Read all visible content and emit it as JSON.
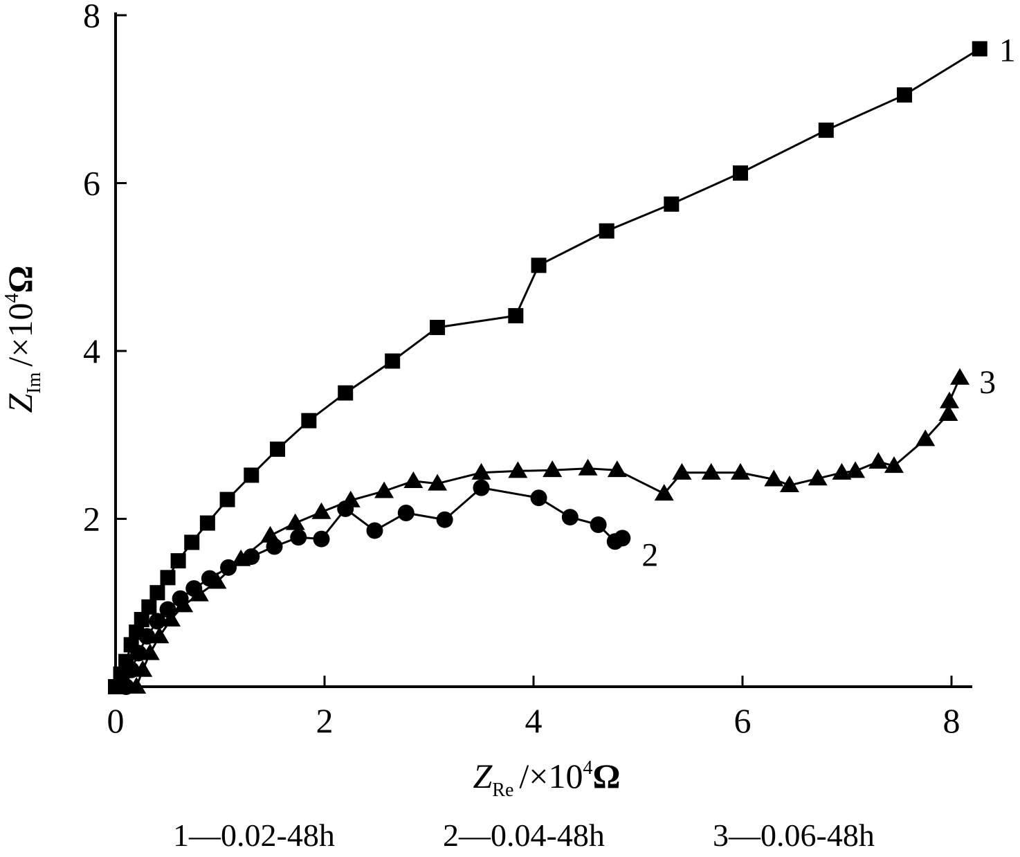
{
  "chart_data": {
    "type": "line",
    "title": "",
    "xlabel": {
      "main": "Z",
      "sub": "Re",
      "unit": "/×10",
      "exp": "4",
      "tail": "Ω"
    },
    "ylabel": {
      "main": "Z",
      "sub": "Im",
      "unit": "/×10",
      "exp": "4",
      "tail": "Ω"
    },
    "xlim": [
      0,
      8.2
    ],
    "ylim": [
      0,
      8
    ],
    "x_ticks": [
      0,
      2,
      4,
      6,
      8
    ],
    "y_ticks": [
      2,
      4,
      6,
      8
    ],
    "x_tick_labels": [
      "0",
      "2",
      "4",
      "6",
      "8"
    ],
    "y_tick_labels": [
      "2",
      "4",
      "6",
      "8"
    ],
    "grid": false,
    "legend_position": "bottom",
    "legend": [
      "1—0.02-48h",
      "2—0.04-48h",
      "3—0.06-48h"
    ],
    "series": [
      {
        "label": "1",
        "marker": "square",
        "color": "#000000",
        "points": [
          [
            0.0,
            0.0
          ],
          [
            0.05,
            0.15
          ],
          [
            0.1,
            0.3
          ],
          [
            0.15,
            0.5
          ],
          [
            0.2,
            0.65
          ],
          [
            0.25,
            0.8
          ],
          [
            0.32,
            0.95
          ],
          [
            0.4,
            1.12
          ],
          [
            0.5,
            1.3
          ],
          [
            0.6,
            1.5
          ],
          [
            0.73,
            1.72
          ],
          [
            0.88,
            1.95
          ],
          [
            1.07,
            2.23
          ],
          [
            1.3,
            2.52
          ],
          [
            1.55,
            2.83
          ],
          [
            1.85,
            3.17
          ],
          [
            2.2,
            3.5
          ],
          [
            2.65,
            3.88
          ],
          [
            3.08,
            4.28
          ],
          [
            3.83,
            4.42
          ],
          [
            4.05,
            5.02
          ],
          [
            4.7,
            5.43
          ],
          [
            5.32,
            5.75
          ],
          [
            5.98,
            6.12
          ],
          [
            6.8,
            6.63
          ],
          [
            7.55,
            7.05
          ],
          [
            8.27,
            7.6
          ]
        ]
      },
      {
        "label": "2",
        "marker": "circle",
        "color": "#000000",
        "points": [
          [
            0.1,
            0.0
          ],
          [
            0.15,
            0.2
          ],
          [
            0.22,
            0.4
          ],
          [
            0.3,
            0.6
          ],
          [
            0.4,
            0.78
          ],
          [
            0.5,
            0.92
          ],
          [
            0.62,
            1.05
          ],
          [
            0.75,
            1.17
          ],
          [
            0.9,
            1.29
          ],
          [
            1.08,
            1.42
          ],
          [
            1.3,
            1.55
          ],
          [
            1.52,
            1.67
          ],
          [
            1.75,
            1.78
          ],
          [
            1.97,
            1.76
          ],
          [
            2.2,
            2.12
          ],
          [
            2.48,
            1.86
          ],
          [
            2.78,
            2.07
          ],
          [
            3.15,
            1.99
          ],
          [
            3.5,
            2.37
          ],
          [
            4.05,
            2.25
          ],
          [
            4.35,
            2.02
          ],
          [
            4.62,
            1.93
          ],
          [
            4.78,
            1.73
          ],
          [
            4.85,
            1.77
          ]
        ]
      },
      {
        "label": "3",
        "marker": "triangle",
        "color": "#000000",
        "points": [
          [
            0.2,
            0.0
          ],
          [
            0.26,
            0.2
          ],
          [
            0.33,
            0.4
          ],
          [
            0.42,
            0.6
          ],
          [
            0.53,
            0.8
          ],
          [
            0.65,
            0.97
          ],
          [
            0.8,
            1.1
          ],
          [
            0.97,
            1.25
          ],
          [
            1.2,
            1.52
          ],
          [
            1.48,
            1.8
          ],
          [
            1.72,
            1.95
          ],
          [
            1.97,
            2.08
          ],
          [
            2.25,
            2.22
          ],
          [
            2.57,
            2.33
          ],
          [
            2.85,
            2.45
          ],
          [
            3.08,
            2.42
          ],
          [
            3.5,
            2.55
          ],
          [
            3.85,
            2.57
          ],
          [
            4.18,
            2.58
          ],
          [
            4.52,
            2.6
          ],
          [
            4.8,
            2.58
          ],
          [
            5.25,
            2.3
          ],
          [
            5.42,
            2.55
          ],
          [
            5.7,
            2.55
          ],
          [
            5.98,
            2.55
          ],
          [
            6.3,
            2.47
          ],
          [
            6.45,
            2.4
          ],
          [
            6.72,
            2.48
          ],
          [
            6.95,
            2.55
          ],
          [
            7.08,
            2.57
          ],
          [
            7.3,
            2.68
          ],
          [
            7.45,
            2.63
          ],
          [
            7.75,
            2.95
          ],
          [
            7.97,
            3.25
          ],
          [
            7.98,
            3.4
          ],
          [
            8.08,
            3.68
          ]
        ]
      }
    ]
  }
}
